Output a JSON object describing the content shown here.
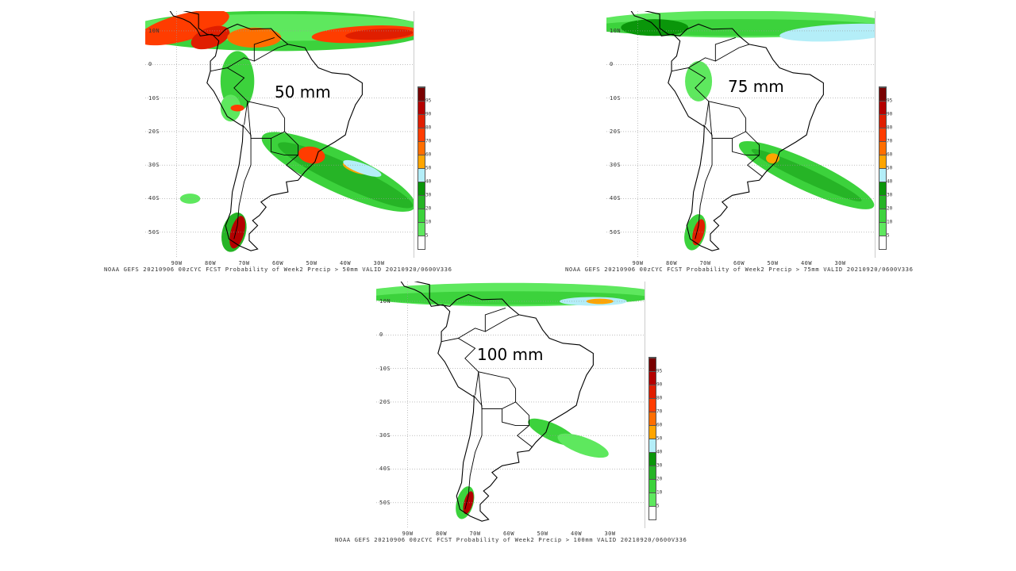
{
  "panels": [
    {
      "title": "50 mm",
      "caption": "NOAA GEFS 20210906 00zCYC FCST Probability of Week2 Precip > 50mm  VALID 20210920/0600V336"
    },
    {
      "title": "75 mm",
      "caption": "NOAA GEFS 20210906 00zCYC FCST Probability of Week2 Precip > 75mm  VALID 20210920/0600V336"
    },
    {
      "title": "100 mm",
      "caption": "NOAA GEFS 20210906 00zCYC FCST Probability of Week2 Precip > 100mm  VALID 20210920/0600V336"
    }
  ],
  "lat_labels": [
    "10N",
    "0",
    "10S",
    "20S",
    "30S",
    "40S",
    "50S"
  ],
  "lon_labels": [
    "90W",
    "80W",
    "70W",
    "60W",
    "50W",
    "40W",
    "30W"
  ],
  "colorbar": {
    "labels": [
      "5",
      "10",
      "20",
      "30",
      "40",
      "50",
      "60",
      "70",
      "80",
      "90",
      "95"
    ],
    "colors": [
      "#ffffff",
      "#5ee85e",
      "#3cd23c",
      "#26b426",
      "#0a960a",
      "#b4eef8",
      "#ffa500",
      "#ff6e00",
      "#ff3c00",
      "#e01e00",
      "#b40000",
      "#780000"
    ]
  }
}
